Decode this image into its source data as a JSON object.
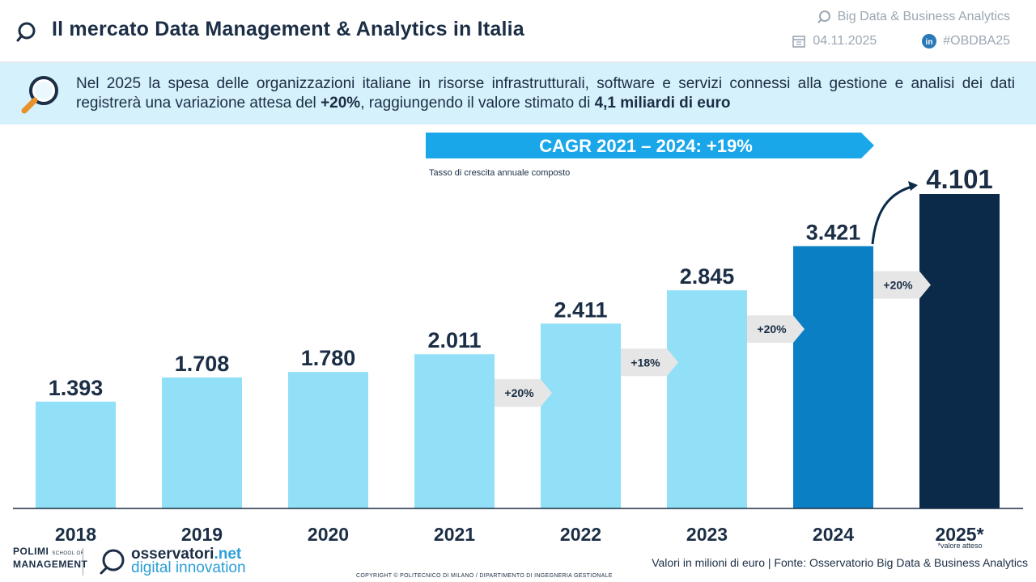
{
  "header": {
    "title": "Il mercato Data Management & Analytics in Italia",
    "event": "Big Data & Business Analytics",
    "date": "04.11.2025",
    "hashtag": "#OBDBA25",
    "logo_icon": "magnifier-logo-icon",
    "event_icon": "search-icon",
    "date_icon": "calendar-icon",
    "hashtag_icon": "linkedin-icon"
  },
  "banner": {
    "text_1": "Nel 2025 la spesa delle organizzazioni italiane in risorse infrastrutturali, software e servizi connessi alla gestione e analisi dei dati registrerà una variazione attesa del ",
    "highlight_1": "+20%",
    "text_2": ", raggiungendo il valore stimato di ",
    "highlight_2": "4,1 miliardi di euro",
    "icon": "magnifying-glass-icon"
  },
  "chart_data": {
    "type": "bar",
    "categories": [
      "2018",
      "2019",
      "2020",
      "2021",
      "2022",
      "2023",
      "2024",
      "2025*"
    ],
    "values": [
      1393,
      1708,
      1780,
      2011,
      2411,
      2845,
      3421,
      4101
    ],
    "value_labels": [
      "1.393",
      "1.708",
      "1.780",
      "2.011",
      "2.411",
      "2.845",
      "3.421",
      "4.101"
    ],
    "growth_labels": [
      "+20%",
      "+18%",
      "+20%",
      "+20%"
    ],
    "cagr_label": "CAGR 2021 – 2024: +19%",
    "cagr_note": "Tasso di crescita annuale composto",
    "footnote": "*valore atteso",
    "ylim": [
      0,
      4150
    ],
    "colors": {
      "default": "#91e0f7",
      "2024": "#0a7fc4",
      "2025": "#0b2a4a",
      "cagr": "#1aa7ea",
      "growth_arrow": "#e6e6e6"
    }
  },
  "footer": {
    "polimi_line1": "POLIMI",
    "polimi_sub": "SCHOOL OF",
    "polimi_line2": "MANAGEMENT",
    "oss_name": "osservatori",
    "oss_net": ".net",
    "oss_tagline": "digital innovation",
    "source": "Valori in milioni di euro | Fonte: Osservatorio Big Data & Business Analytics",
    "copyright": "COPYRIGHT © POLITECNICO DI MILANO / DIPARTIMENTO DI INGEGNERIA GESTIONALE"
  }
}
